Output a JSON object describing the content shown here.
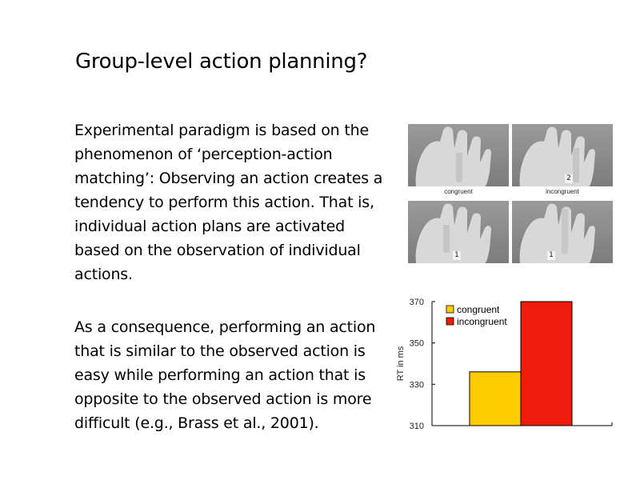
{
  "slide": {
    "title": "Group-level action planning?",
    "paragraph1": "Experimental paradigm is based on the phenomenon of ‘perception-action matching’: Observing an action creates a tendency to perform this action. That is, individual action plans are activated based on the observation of individual actions.",
    "paragraph2": "As a consequence, performing an action that is similar to the observed action is easy while performing an action that is opposite to the observed action is more difficult (e.g., Brass et al., 2001)."
  },
  "hands_figure": {
    "label_left": "congruent",
    "label_right": "incongruent",
    "numbers": {
      "top_right": "2",
      "bottom_left": "1",
      "bottom_right": "1"
    }
  },
  "chart_data": {
    "type": "bar",
    "categories": [
      "congruent",
      "incongruent"
    ],
    "values": [
      336,
      370
    ],
    "colors": [
      "#FFCC00",
      "#EE1C0B"
    ],
    "title": "",
    "xlabel": "",
    "ylabel": "RT in ms",
    "ylim": [
      310,
      370
    ],
    "yticks": [
      310,
      330,
      350,
      370
    ],
    "legend": {
      "placement": "top-left",
      "entries": [
        "congruent",
        "incongruent"
      ]
    }
  }
}
